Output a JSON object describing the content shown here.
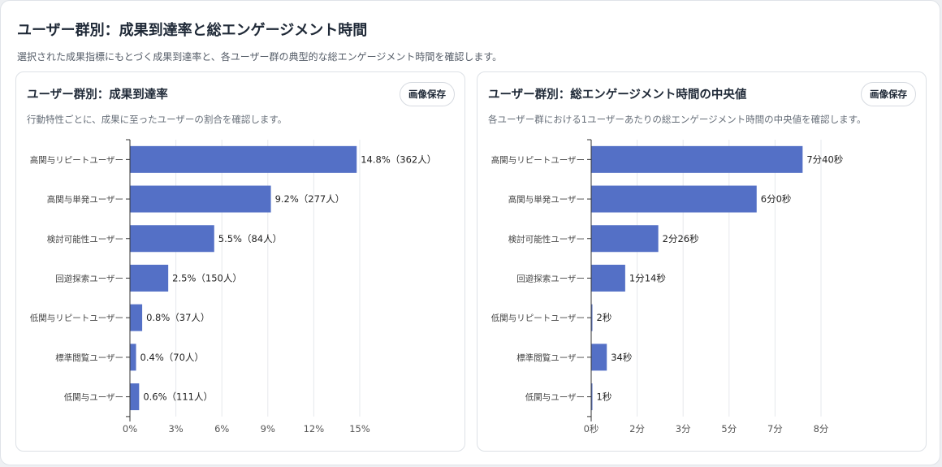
{
  "header": {
    "title": "ユーザー群別：成果到達率と総エンゲージメント時間",
    "subtitle": "選択された成果指標にもとづく成果到達率と、各ユーザー群の典型的な総エンゲージメント時間を確認します。"
  },
  "save_button_label": "画像保存",
  "colors": {
    "bar": "#5470c6",
    "grid": "#e6e8ec",
    "axis": "#333333"
  },
  "chart_data": [
    {
      "type": "bar",
      "orientation": "horizontal",
      "title": "ユーザー群別：成果到達率",
      "subtitle": "行動特性ごとに、成果に至ったユーザーの割合を確認します。",
      "categories": [
        "高関与リピートユーザー",
        "高関与単発ユーザー",
        "検討可能性ユーザー",
        "回遊探索ユーザー",
        "低関与リピートユーザー",
        "標準閲覧ユーザー",
        "低関与ユーザー"
      ],
      "values": [
        14.8,
        9.2,
        5.5,
        2.5,
        0.8,
        0.4,
        0.6
      ],
      "data_labels": [
        "14.8%（362人）",
        "9.2%（277人）",
        "5.5%（84人）",
        "2.5%（150人）",
        "0.8%（37人）",
        "0.4%（70人）",
        "0.6%（111人）"
      ],
      "xlim": [
        0,
        15
      ],
      "xticks": [
        0,
        3,
        6,
        9,
        12,
        15
      ],
      "xtick_labels": [
        "0%",
        "3%",
        "6%",
        "9%",
        "12%",
        "15%"
      ],
      "grid": true
    },
    {
      "type": "bar",
      "orientation": "horizontal",
      "title": "ユーザー群別：総エンゲージメント時間の中央値",
      "subtitle": "各ユーザー群における1ユーザーあたりの総エンゲージメント時間の中央値を確認します。",
      "categories": [
        "高関与リピートユーザー",
        "高関与単発ユーザー",
        "検討可能性ユーザー",
        "回遊探索ユーザー",
        "低関与リピートユーザー",
        "標準閲覧ユーザー",
        "低関与ユーザー"
      ],
      "values_seconds": [
        460,
        360,
        146,
        74,
        2,
        34,
        1
      ],
      "data_labels": [
        "7分40秒",
        "6分0秒",
        "2分26秒",
        "1分14秒",
        "2秒",
        "34秒",
        "1秒"
      ],
      "xlim": [
        0,
        500
      ],
      "xticks": [
        0,
        100,
        200,
        300,
        400,
        500
      ],
      "xtick_labels": [
        "0秒",
        "2分",
        "3分",
        "5分",
        "7分",
        "8分"
      ],
      "grid": true
    }
  ]
}
